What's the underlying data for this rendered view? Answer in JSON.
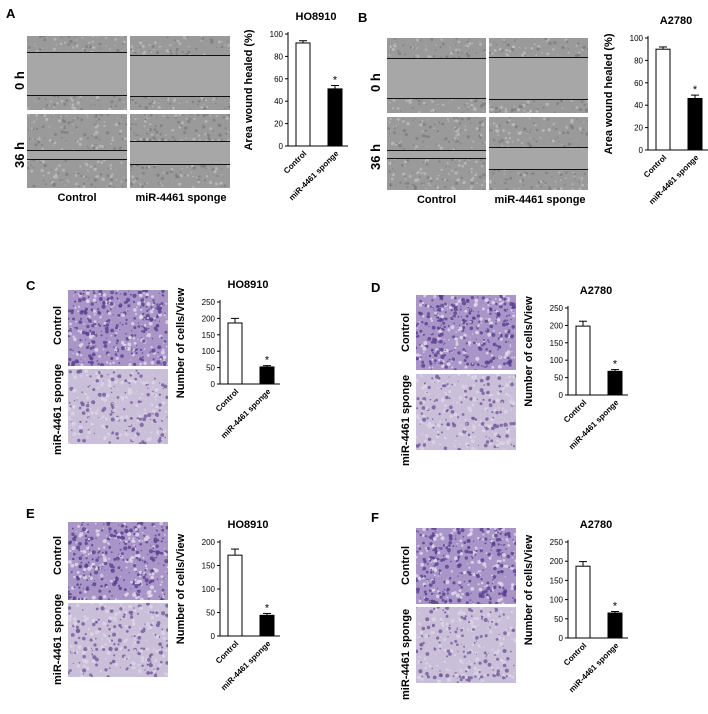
{
  "panels": [
    {
      "id": "A",
      "label": "A",
      "kind": "wound",
      "row_labels": [
        "0 h",
        "36 h"
      ],
      "col_labels": [
        "Control",
        "miR-4461 sponge"
      ],
      "chart_title": "HO8910"
    },
    {
      "id": "B",
      "label": "B",
      "kind": "wound",
      "row_labels": [
        "0 h",
        "36 h"
      ],
      "col_labels": [
        "Control",
        "miR-4461 sponge"
      ],
      "chart_title": "A2780"
    },
    {
      "id": "C",
      "label": "C",
      "kind": "transwell",
      "row_labels": [
        "Control",
        "miR-4461 sponge"
      ],
      "chart_title": "HO8910"
    },
    {
      "id": "D",
      "label": "D",
      "kind": "transwell",
      "row_labels": [
        "Control",
        "miR-4461 sponge"
      ],
      "chart_title": "A2780"
    },
    {
      "id": "E",
      "label": "E",
      "kind": "transwell",
      "row_labels": [
        "Control",
        "miR-4461 sponge"
      ],
      "chart_title": "HO8910"
    },
    {
      "id": "F",
      "label": "F",
      "kind": "transwell",
      "row_labels": [
        "Control",
        "miR-4461 sponge"
      ],
      "chart_title": "A2780"
    }
  ],
  "chart_data": [
    {
      "type": "bar",
      "panel": "A",
      "title": "HO8910",
      "ylabel": "Area wound healed (%)",
      "categories": [
        "Control",
        "miR-4461 sponge"
      ],
      "values": [
        92,
        51
      ],
      "errors": [
        2,
        3
      ],
      "fills": [
        "#ffffff",
        "#000000"
      ],
      "significance": [
        "",
        "*"
      ],
      "ylim": [
        0,
        100
      ],
      "yticks": [
        0,
        20,
        40,
        60,
        80,
        100
      ]
    },
    {
      "type": "bar",
      "panel": "B",
      "title": "A2780",
      "ylabel": "Area wound healed (%)",
      "categories": [
        "Control",
        "miR-4461 sponge"
      ],
      "values": [
        90,
        46
      ],
      "errors": [
        2,
        3
      ],
      "fills": [
        "#ffffff",
        "#000000"
      ],
      "significance": [
        "",
        "*"
      ],
      "ylim": [
        0,
        100
      ],
      "yticks": [
        0,
        20,
        40,
        60,
        80,
        100
      ]
    },
    {
      "type": "bar",
      "panel": "C",
      "title": "HO8910",
      "ylabel": "Number of cells/View",
      "categories": [
        "Control",
        "miR-4461 sponge"
      ],
      "values": [
        186,
        52
      ],
      "errors": [
        14,
        4
      ],
      "fills": [
        "#ffffff",
        "#000000"
      ],
      "significance": [
        "",
        "*"
      ],
      "ylim": [
        0,
        250
      ],
      "yticks": [
        0,
        50,
        100,
        150,
        200,
        250
      ]
    },
    {
      "type": "bar",
      "panel": "D",
      "title": "A2780",
      "ylabel": "Number of cells/View",
      "categories": [
        "Control",
        "miR-4461 sponge"
      ],
      "values": [
        198,
        68
      ],
      "errors": [
        14,
        5
      ],
      "fills": [
        "#ffffff",
        "#000000"
      ],
      "significance": [
        "",
        "*"
      ],
      "ylim": [
        0,
        250
      ],
      "yticks": [
        0,
        50,
        100,
        150,
        200,
        250
      ]
    },
    {
      "type": "bar",
      "panel": "E",
      "title": "HO8910",
      "ylabel": "Number of cells/View",
      "categories": [
        "Control",
        "miR-4461 sponge"
      ],
      "values": [
        172,
        44
      ],
      "errors": [
        13,
        4
      ],
      "fills": [
        "#ffffff",
        "#000000"
      ],
      "significance": [
        "",
        "*"
      ],
      "ylim": [
        0,
        200
      ],
      "yticks": [
        0,
        50,
        100,
        150,
        200
      ]
    },
    {
      "type": "bar",
      "panel": "F",
      "title": "A2780",
      "ylabel": "Number of cells/View",
      "categories": [
        "Control",
        "miR-4461 sponge"
      ],
      "values": [
        187,
        65
      ],
      "errors": [
        12,
        4
      ],
      "fills": [
        "#ffffff",
        "#000000"
      ],
      "significance": [
        "",
        "*"
      ],
      "ylim": [
        0,
        250
      ],
      "yticks": [
        0,
        50,
        100,
        150,
        200,
        250
      ]
    }
  ]
}
